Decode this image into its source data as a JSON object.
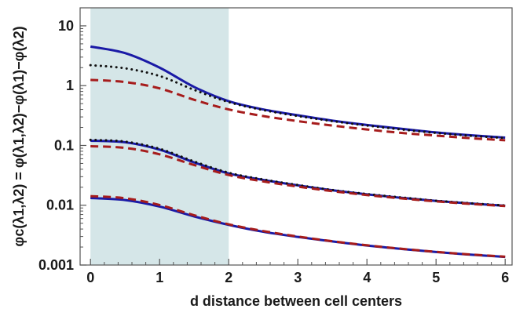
{
  "chart_data": {
    "type": "line",
    "xlabel": "d distance between cell centers",
    "ylabel": "φc(λ1,λ2) = φ(λ1,λ2)−φ(λ1)−φ(λ2)",
    "y_scale": "log",
    "xlim": [
      -0.15,
      6.1
    ],
    "ylim": [
      0.001,
      20
    ],
    "x_ticks": [
      "0",
      "1",
      "2",
      "3",
      "4",
      "5",
      "6"
    ],
    "y_ticks": [
      "0.001",
      "0.01",
      "0.1",
      "1",
      "10"
    ],
    "shaded_region": {
      "x_start": 0,
      "x_end": 2,
      "color": "#d5e6e8"
    },
    "series": [
      {
        "style": "solid",
        "color": "#1a1aa6",
        "x": [
          0,
          0.5,
          1,
          1.5,
          2,
          2.5,
          3,
          3.5,
          4,
          4.5,
          5,
          5.5,
          6
        ],
        "y": [
          4.5,
          3.5,
          2.0,
          0.95,
          0.55,
          0.4,
          0.32,
          0.26,
          0.22,
          0.19,
          0.165,
          0.148,
          0.135
        ]
      },
      {
        "style": "dotted",
        "color": "#111111",
        "x": [
          0,
          0.5,
          1,
          1.5,
          2,
          2.5,
          3,
          3.5,
          4,
          4.5,
          5,
          5.5,
          6
        ],
        "y": [
          2.2,
          1.95,
          1.45,
          0.85,
          0.53,
          0.39,
          0.31,
          0.255,
          0.215,
          0.185,
          0.162,
          0.145,
          0.133
        ]
      },
      {
        "style": "dashed",
        "color": "#a61c1c",
        "x": [
          0,
          0.5,
          1,
          1.5,
          2,
          2.5,
          3,
          3.5,
          4,
          4.5,
          5,
          5.5,
          6
        ],
        "y": [
          1.25,
          1.15,
          0.9,
          0.58,
          0.4,
          0.31,
          0.255,
          0.215,
          0.185,
          0.162,
          0.146,
          0.132,
          0.122
        ]
      },
      {
        "style": "solid",
        "color": "#1a1aa6",
        "x": [
          0,
          0.5,
          1,
          1.5,
          2,
          2.5,
          3,
          3.5,
          4,
          4.5,
          5,
          5.5,
          6
        ],
        "y": [
          0.12,
          0.113,
          0.085,
          0.052,
          0.034,
          0.0265,
          0.0215,
          0.0178,
          0.0152,
          0.0133,
          0.0118,
          0.0107,
          0.0098
        ]
      },
      {
        "style": "dotted",
        "color": "#111111",
        "x": [
          0,
          0.5,
          1,
          1.5,
          2,
          2.5,
          3,
          3.5,
          4,
          4.5,
          5,
          5.5,
          6
        ],
        "y": [
          0.124,
          0.116,
          0.088,
          0.054,
          0.035,
          0.027,
          0.0218,
          0.018,
          0.0154,
          0.0135,
          0.0119,
          0.0108,
          0.0099
        ]
      },
      {
        "style": "dashed",
        "color": "#a61c1c",
        "x": [
          0,
          0.5,
          1,
          1.5,
          2,
          2.5,
          3,
          3.5,
          4,
          4.5,
          5,
          5.5,
          6
        ],
        "y": [
          0.097,
          0.091,
          0.071,
          0.047,
          0.032,
          0.025,
          0.0205,
          0.0172,
          0.0148,
          0.013,
          0.0116,
          0.0105,
          0.0097
        ]
      },
      {
        "style": "solid",
        "color": "#1a1aa6",
        "x": [
          0,
          0.5,
          1,
          1.5,
          2,
          2.5,
          3,
          3.5,
          4,
          4.5,
          5,
          5.5,
          6
        ],
        "y": [
          0.0132,
          0.0122,
          0.0095,
          0.0065,
          0.0047,
          0.0036,
          0.00295,
          0.00248,
          0.00212,
          0.00186,
          0.00165,
          0.00149,
          0.00137
        ]
      },
      {
        "style": "dashed",
        "color": "#a61c1c",
        "x": [
          0,
          0.5,
          1,
          1.5,
          2,
          2.5,
          3,
          3.5,
          4,
          4.5,
          5,
          5.5,
          6
        ],
        "y": [
          0.0142,
          0.0131,
          0.0101,
          0.0068,
          0.0048,
          0.0037,
          0.003,
          0.0025,
          0.00214,
          0.00187,
          0.00166,
          0.0015,
          0.00138
        ]
      }
    ]
  }
}
